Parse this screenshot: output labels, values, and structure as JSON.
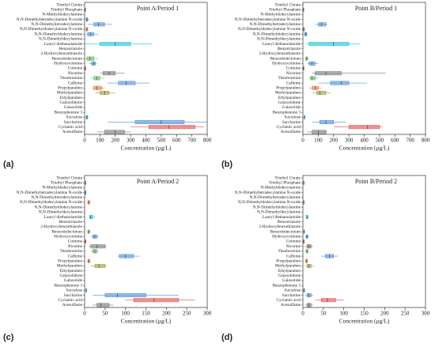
{
  "chart_data": [
    {
      "type": "boxplot",
      "title": "Point A/Period 1",
      "panel_label": "(a)",
      "xlabel": "Concentration (μg/L)",
      "xlim": [
        0,
        800
      ],
      "xticks": [
        0,
        100,
        200,
        300,
        400,
        500,
        600,
        700,
        800
      ],
      "categories": [
        "Triethyl Citrate",
        "Triethyl Phosphate",
        "N-Methyldodecylamine",
        "N,N-Dimethyltetradecylamine N-oxide",
        "N,N-Dimethyltetradecylamine",
        "N,N-Dimethyldodecylamine N-oxide",
        "N,N-Dimethyldodecylamine",
        "N,N-Dimethyldecylamine",
        "Lauryl diethanolamide",
        "Benzotriazole",
        "2-Hydroxybenzothiazole",
        "Benzododecinium",
        "Hydroxycotinine",
        "Cotinine",
        "Nicotine",
        "Theobromine",
        "Caffeine",
        "Propylparaben",
        "Methylparaben",
        "Ethylparaben",
        "Galaxolidone",
        "Galaxolide",
        "Benzophenone 3",
        "Sucralose",
        "Saccharine",
        "Cyclamic acid",
        "Acesulfame"
      ],
      "boxes": [
        null,
        {
          "color": "#e8743b",
          "stats": [
            0,
            2,
            3,
            4,
            6
          ]
        },
        null,
        {
          "color": "#4a90d9",
          "stats": [
            5,
            10,
            15,
            20,
            30
          ]
        },
        {
          "color": "#4a90d9",
          "stats": [
            20,
            60,
            90,
            130,
            180
          ]
        },
        {
          "color": "#e8743b",
          "stats": [
            5,
            10,
            15,
            20,
            25
          ]
        },
        {
          "color": "#4a90d9",
          "stats": [
            10,
            20,
            40,
            60,
            90
          ]
        },
        null,
        {
          "color": "#21c5d8",
          "stats": [
            0,
            100,
            200,
            300,
            440
          ]
        },
        null,
        null,
        {
          "color": "#5cb85c",
          "stats": [
            5,
            15,
            35,
            60,
            90
          ]
        },
        {
          "color": "#4a90d9",
          "stats": [
            30,
            45,
            60,
            70,
            80
          ]
        },
        {
          "color": "#e05050",
          "stats": [
            0,
            2,
            4,
            6,
            8
          ]
        },
        {
          "color": "#777777",
          "stats": [
            100,
            120,
            160,
            200,
            260
          ]
        },
        {
          "color": "#5cb85c",
          "stats": [
            40,
            60,
            80,
            100,
            130
          ]
        },
        {
          "color": "#4a90d9",
          "stats": [
            150,
            220,
            270,
            330,
            420
          ]
        },
        {
          "color": "#e8743b",
          "stats": [
            50,
            60,
            80,
            110,
            130
          ]
        },
        {
          "color": "#a0a040",
          "stats": [
            70,
            100,
            130,
            160,
            200
          ]
        },
        null,
        null,
        null,
        null,
        {
          "color": "#30b0a0",
          "stats": [
            5,
            10,
            15,
            20,
            25
          ]
        },
        {
          "color": "#4a90d9",
          "stats": [
            150,
            330,
            500,
            650,
            800
          ]
        },
        {
          "color": "#e05050",
          "stats": [
            300,
            420,
            550,
            720,
            780
          ]
        },
        {
          "color": "#777777",
          "stats": [
            80,
            130,
            200,
            260,
            300
          ]
        }
      ]
    },
    {
      "type": "boxplot",
      "title": "Point B/Period 1",
      "panel_label": "(b)",
      "xlabel": "Concentration (μg/L)",
      "xlim": [
        0,
        800
      ],
      "xticks": [
        0,
        100,
        200,
        300,
        400,
        500,
        600,
        700,
        800
      ],
      "categories": [
        "Triethyl Citrate",
        "Triethyl Phosphate",
        "N-Methyldodecylamine",
        "N,N-Dimethyltetradecylamine N-oxide",
        "N,N-Dimethyltetradecylamine",
        "N,N-Dimethyldodecylamine N-oxide",
        "N,N-Dimethyldodecylamine",
        "N,N-Dimethyldecylamine",
        "Lauryl diethanolamide",
        "Benzotriazole",
        "2-Hydroxybenzothiazole",
        "Benzododecinium",
        "Hydroxycotinine",
        "Cotinine",
        "Nicotine",
        "Theobromine",
        "Caffeine",
        "Propylparaben",
        "Methylparaben",
        "Ethylparaben",
        "Galaxolidone",
        "Galaxolide",
        "Benzophenone 3",
        "Sucralose",
        "Saccharine",
        "Cyclamic acid",
        "Acesulfame"
      ],
      "boxes": [
        null,
        {
          "color": "#e8743b",
          "stats": [
            0,
            2,
            3,
            4,
            6
          ]
        },
        null,
        null,
        {
          "color": "#4a90d9",
          "stats": [
            80,
            100,
            120,
            150,
            160
          ]
        },
        {
          "color": "#e8743b",
          "stats": [
            2,
            4,
            6,
            8,
            10
          ]
        },
        {
          "color": "#4a90d9",
          "stats": [
            5,
            10,
            20,
            25,
            30
          ]
        },
        null,
        {
          "color": "#21c5d8",
          "stats": [
            20,
            40,
            200,
            300,
            370
          ]
        },
        null,
        null,
        {
          "color": "#5cb85c",
          "stats": [
            10,
            20,
            25,
            30,
            40
          ]
        },
        {
          "color": "#4a90d9",
          "stats": [
            30,
            40,
            60,
            80,
            100
          ]
        },
        {
          "color": "#e05050",
          "stats": [
            0,
            2,
            4,
            6,
            8
          ]
        },
        {
          "color": "#777777",
          "stats": [
            60,
            80,
            150,
            250,
            540
          ]
        },
        {
          "color": "#5cb85c",
          "stats": [
            40,
            50,
            60,
            80,
            100
          ]
        },
        {
          "color": "#4a90d9",
          "stats": [
            100,
            180,
            250,
            300,
            420
          ]
        },
        {
          "color": "#e8743b",
          "stats": [
            40,
            60,
            80,
            100,
            120
          ]
        },
        {
          "color": "#a0a040",
          "stats": [
            60,
            90,
            110,
            150,
            180
          ]
        },
        null,
        null,
        null,
        null,
        {
          "color": "#30b0a0",
          "stats": [
            5,
            8,
            10,
            12,
            15
          ]
        },
        {
          "color": "#4a90d9",
          "stats": [
            60,
            110,
            150,
            200,
            280
          ]
        },
        {
          "color": "#e05050",
          "stats": [
            200,
            300,
            420,
            500,
            520
          ]
        },
        {
          "color": "#777777",
          "stats": [
            30,
            60,
            100,
            150,
            160
          ]
        }
      ]
    },
    {
      "type": "boxplot",
      "title": "Point A/Period 2",
      "panel_label": "(c)",
      "xlabel": "Concentration (μg/L)",
      "xlim": [
        0,
        300
      ],
      "xticks": [
        0,
        50,
        100,
        150,
        200,
        250,
        300
      ],
      "categories": [
        "Triethyl Citrate",
        "Triethyl Phosphate",
        "N-Methyldodecylamine",
        "N,N-Dimethyltetradecylamine N-oxide",
        "N,N-Dimethyltetradecylamine",
        "N,N-Dimethyldodecylamine N-oxide",
        "N,N-Dimethyldodecylamine",
        "N,N-Dimethyldecylamine",
        "Lauryl diethanolamide",
        "Benzotriazole",
        "2-Hydroxybenzothiazole",
        "Benzododecinium",
        "Hydroxycotinine",
        "Cotinine",
        "Nicotine",
        "Theobromine",
        "Caffeine",
        "Propylparaben",
        "Methylparaben",
        "Ethylparaben",
        "Galaxolidone",
        "Galaxolide",
        "Benzophenone 3",
        "Sucralose",
        "Saccharine",
        "Cyclamic acid",
        "Acesulfame"
      ],
      "boxes": [
        null,
        {
          "color": "#e8743b",
          "stats": [
            0,
            1,
            2,
            3,
            4
          ]
        },
        null,
        {
          "color": "#4a90d9",
          "stats": [
            0,
            1,
            2,
            3,
            4
          ]
        },
        null,
        {
          "color": "#e8743b",
          "stats": [
            5,
            8,
            10,
            12,
            15
          ]
        },
        null,
        null,
        {
          "color": "#21c5d8",
          "stats": [
            10,
            12,
            15,
            20,
            25
          ]
        },
        null,
        null,
        {
          "color": "#5cb85c",
          "stats": [
            5,
            8,
            10,
            12,
            15
          ]
        },
        {
          "color": "#4a90d9",
          "stats": [
            15,
            20,
            25,
            30,
            35
          ]
        },
        {
          "color": "#e05050",
          "stats": [
            0,
            1,
            2,
            3,
            4
          ]
        },
        {
          "color": "#777777",
          "stats": [
            10,
            15,
            30,
            50,
            55
          ]
        },
        {
          "color": "#5cb85c",
          "stats": [
            15,
            20,
            25,
            30,
            35
          ]
        },
        {
          "color": "#4a90d9",
          "stats": [
            80,
            85,
            100,
            120,
            135
          ]
        },
        {
          "color": "#e8743b",
          "stats": [
            5,
            8,
            10,
            12,
            15
          ]
        },
        {
          "color": "#a0a040",
          "stats": [
            15,
            25,
            35,
            50,
            55
          ]
        },
        null,
        null,
        null,
        null,
        {
          "color": "#30b0a0",
          "stats": [
            2,
            3,
            4,
            5,
            6
          ]
        },
        {
          "color": "#4a90d9",
          "stats": [
            20,
            50,
            80,
            150,
            230
          ]
        },
        {
          "color": "#e05050",
          "stats": [
            100,
            120,
            170,
            230,
            270
          ]
        },
        {
          "color": "#777777",
          "stats": [
            20,
            30,
            40,
            60,
            70
          ]
        }
      ]
    },
    {
      "type": "boxplot",
      "title": "Point B/Period 2",
      "panel_label": "(d)",
      "xlabel": "Concentration (μg/L)",
      "xlim": [
        0,
        300
      ],
      "xticks": [
        0,
        50,
        100,
        150,
        200,
        250,
        300
      ],
      "categories": [
        "Triethyl Citrate",
        "Triethyl Phosphate",
        "N-Methyldodecylamine",
        "N,N-Dimethyltetradecylamine N-oxide",
        "N,N-Dimethyltetradecylamine",
        "N,N-Dimethyldodecylamine N-oxide",
        "N,N-Dimethyldodecylamine",
        "N,N-Dimethyldecylamine",
        "Lauryl diethanolamide",
        "Benzotriazole",
        "2-Hydroxybenzothiazole",
        "Benzododecinium",
        "Hydroxycotinine",
        "Cotinine",
        "Nicotine",
        "Theobromine",
        "Caffeine",
        "Propylparaben",
        "Methylparaben",
        "Ethylparaben",
        "Galaxolidone",
        "Galaxolide",
        "Benzophenone 3",
        "Sucralose",
        "Saccharine",
        "Cyclamic acid",
        "Acesulfame"
      ],
      "boxes": [
        null,
        {
          "color": "#e8743b",
          "stats": [
            0,
            1,
            2,
            3,
            4
          ]
        },
        null,
        null,
        null,
        {
          "color": "#e8743b",
          "stats": [
            0,
            1,
            2,
            3,
            4
          ]
        },
        null,
        null,
        {
          "color": "#21c5d8",
          "stats": [
            8,
            8,
            10,
            12,
            14
          ]
        },
        null,
        null,
        {
          "color": "#5cb85c",
          "stats": [
            1,
            2,
            3,
            4,
            5
          ]
        },
        {
          "color": "#4a90d9",
          "stats": [
            5,
            8,
            10,
            12,
            15
          ]
        },
        {
          "color": "#e05050",
          "stats": [
            0,
            1,
            2,
            3,
            4
          ]
        },
        {
          "color": "#777777",
          "stats": [
            5,
            10,
            15,
            20,
            25
          ]
        },
        {
          "color": "#5cb85c",
          "stats": [
            5,
            8,
            10,
            12,
            14
          ]
        },
        {
          "color": "#4a90d9",
          "stats": [
            45,
            55,
            65,
            75,
            85
          ]
        },
        {
          "color": "#e8743b",
          "stats": [
            5,
            7,
            9,
            11,
            13
          ]
        },
        {
          "color": "#a0a040",
          "stats": [
            5,
            10,
            15,
            20,
            28
          ]
        },
        null,
        null,
        null,
        null,
        {
          "color": "#30b0a0",
          "stats": [
            1,
            2,
            3,
            4,
            5
          ]
        },
        {
          "color": "#4a90d9",
          "stats": [
            5,
            10,
            15,
            20,
            25
          ]
        },
        {
          "color": "#e05050",
          "stats": [
            30,
            45,
            60,
            80,
            100
          ]
        },
        {
          "color": "#777777",
          "stats": [
            5,
            10,
            15,
            20,
            25
          ]
        }
      ]
    }
  ]
}
